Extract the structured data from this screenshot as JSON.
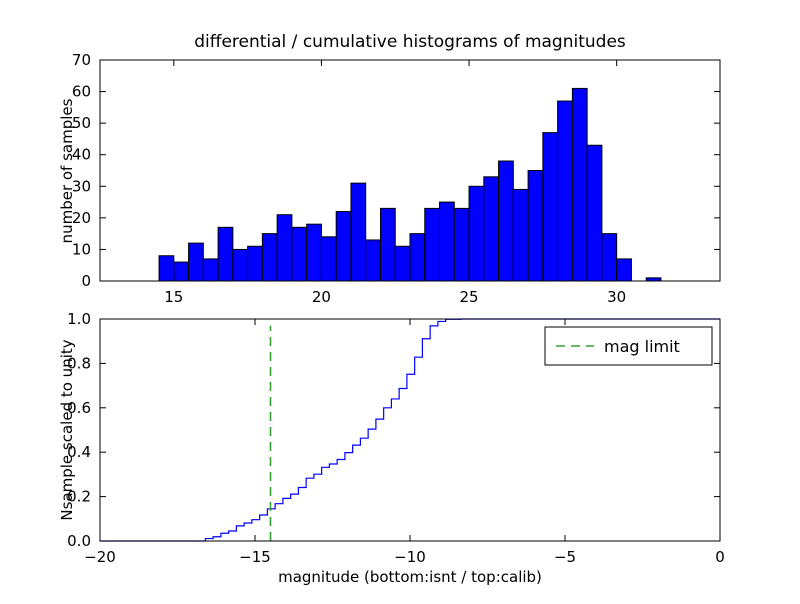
{
  "background": "#ffffff",
  "chart_data": [
    {
      "type": "bar",
      "title": "differential / cumulative histograms of magnitudes",
      "ylabel": "number of samples",
      "xlim": [
        12.5,
        33.5
      ],
      "ylim": [
        0,
        70
      ],
      "xtick_values": [
        15,
        20,
        25,
        30
      ],
      "xtick_labels": [
        "15",
        "20",
        "25",
        "30"
      ],
      "ytick_values": [
        0,
        10,
        20,
        30,
        40,
        50,
        60,
        70
      ],
      "ytick_labels": [
        "0",
        "10",
        "20",
        "30",
        "40",
        "50",
        "60",
        "70"
      ],
      "bar_color": "#0000ff",
      "bar_edge_color": "#000000",
      "bin_start": 14.5,
      "bin_width": 0.5,
      "values": [
        8,
        6,
        12,
        7,
        17,
        10,
        11,
        15,
        21,
        17,
        18,
        14,
        22,
        31,
        13,
        23,
        11,
        15,
        23,
        25,
        23,
        30,
        33,
        38,
        29,
        35,
        47,
        57,
        61,
        43,
        15,
        7,
        0,
        1
      ]
    },
    {
      "type": "line",
      "ylabel": "Nsample scaled to unity",
      "xlabel": "magnitude (bottom:isnt / top:calib)",
      "xlim": [
        -20,
        0
      ],
      "ylim": [
        0,
        1
      ],
      "xtick_values": [
        -20,
        -15,
        -10,
        -5,
        0
      ],
      "xtick_labels": [
        "−20",
        "−15",
        "−10",
        "−5",
        "0"
      ],
      "ytick_values": [
        0,
        0.2,
        0.4,
        0.6,
        0.8,
        1.0
      ],
      "ytick_labels": [
        "0.0",
        "0.2",
        "0.4",
        "0.6",
        "0.8",
        "1.0"
      ],
      "line_color": "#0000ff",
      "step_start": -16.6,
      "step_width": 0.25,
      "cumulative": [
        0.011,
        0.019,
        0.035,
        0.045,
        0.068,
        0.081,
        0.096,
        0.117,
        0.145,
        0.168,
        0.192,
        0.211,
        0.241,
        0.283,
        0.301,
        0.332,
        0.347,
        0.367,
        0.398,
        0.432,
        0.463,
        0.504,
        0.549,
        0.6,
        0.64,
        0.687,
        0.751,
        0.828,
        0.911,
        0.969,
        0.989,
        0.999,
        0.999,
        1.0
      ],
      "mag_limit": {
        "x": -14.5,
        "label": "mag limit",
        "color": "#33a033",
        "ymax": 0.97
      }
    }
  ]
}
